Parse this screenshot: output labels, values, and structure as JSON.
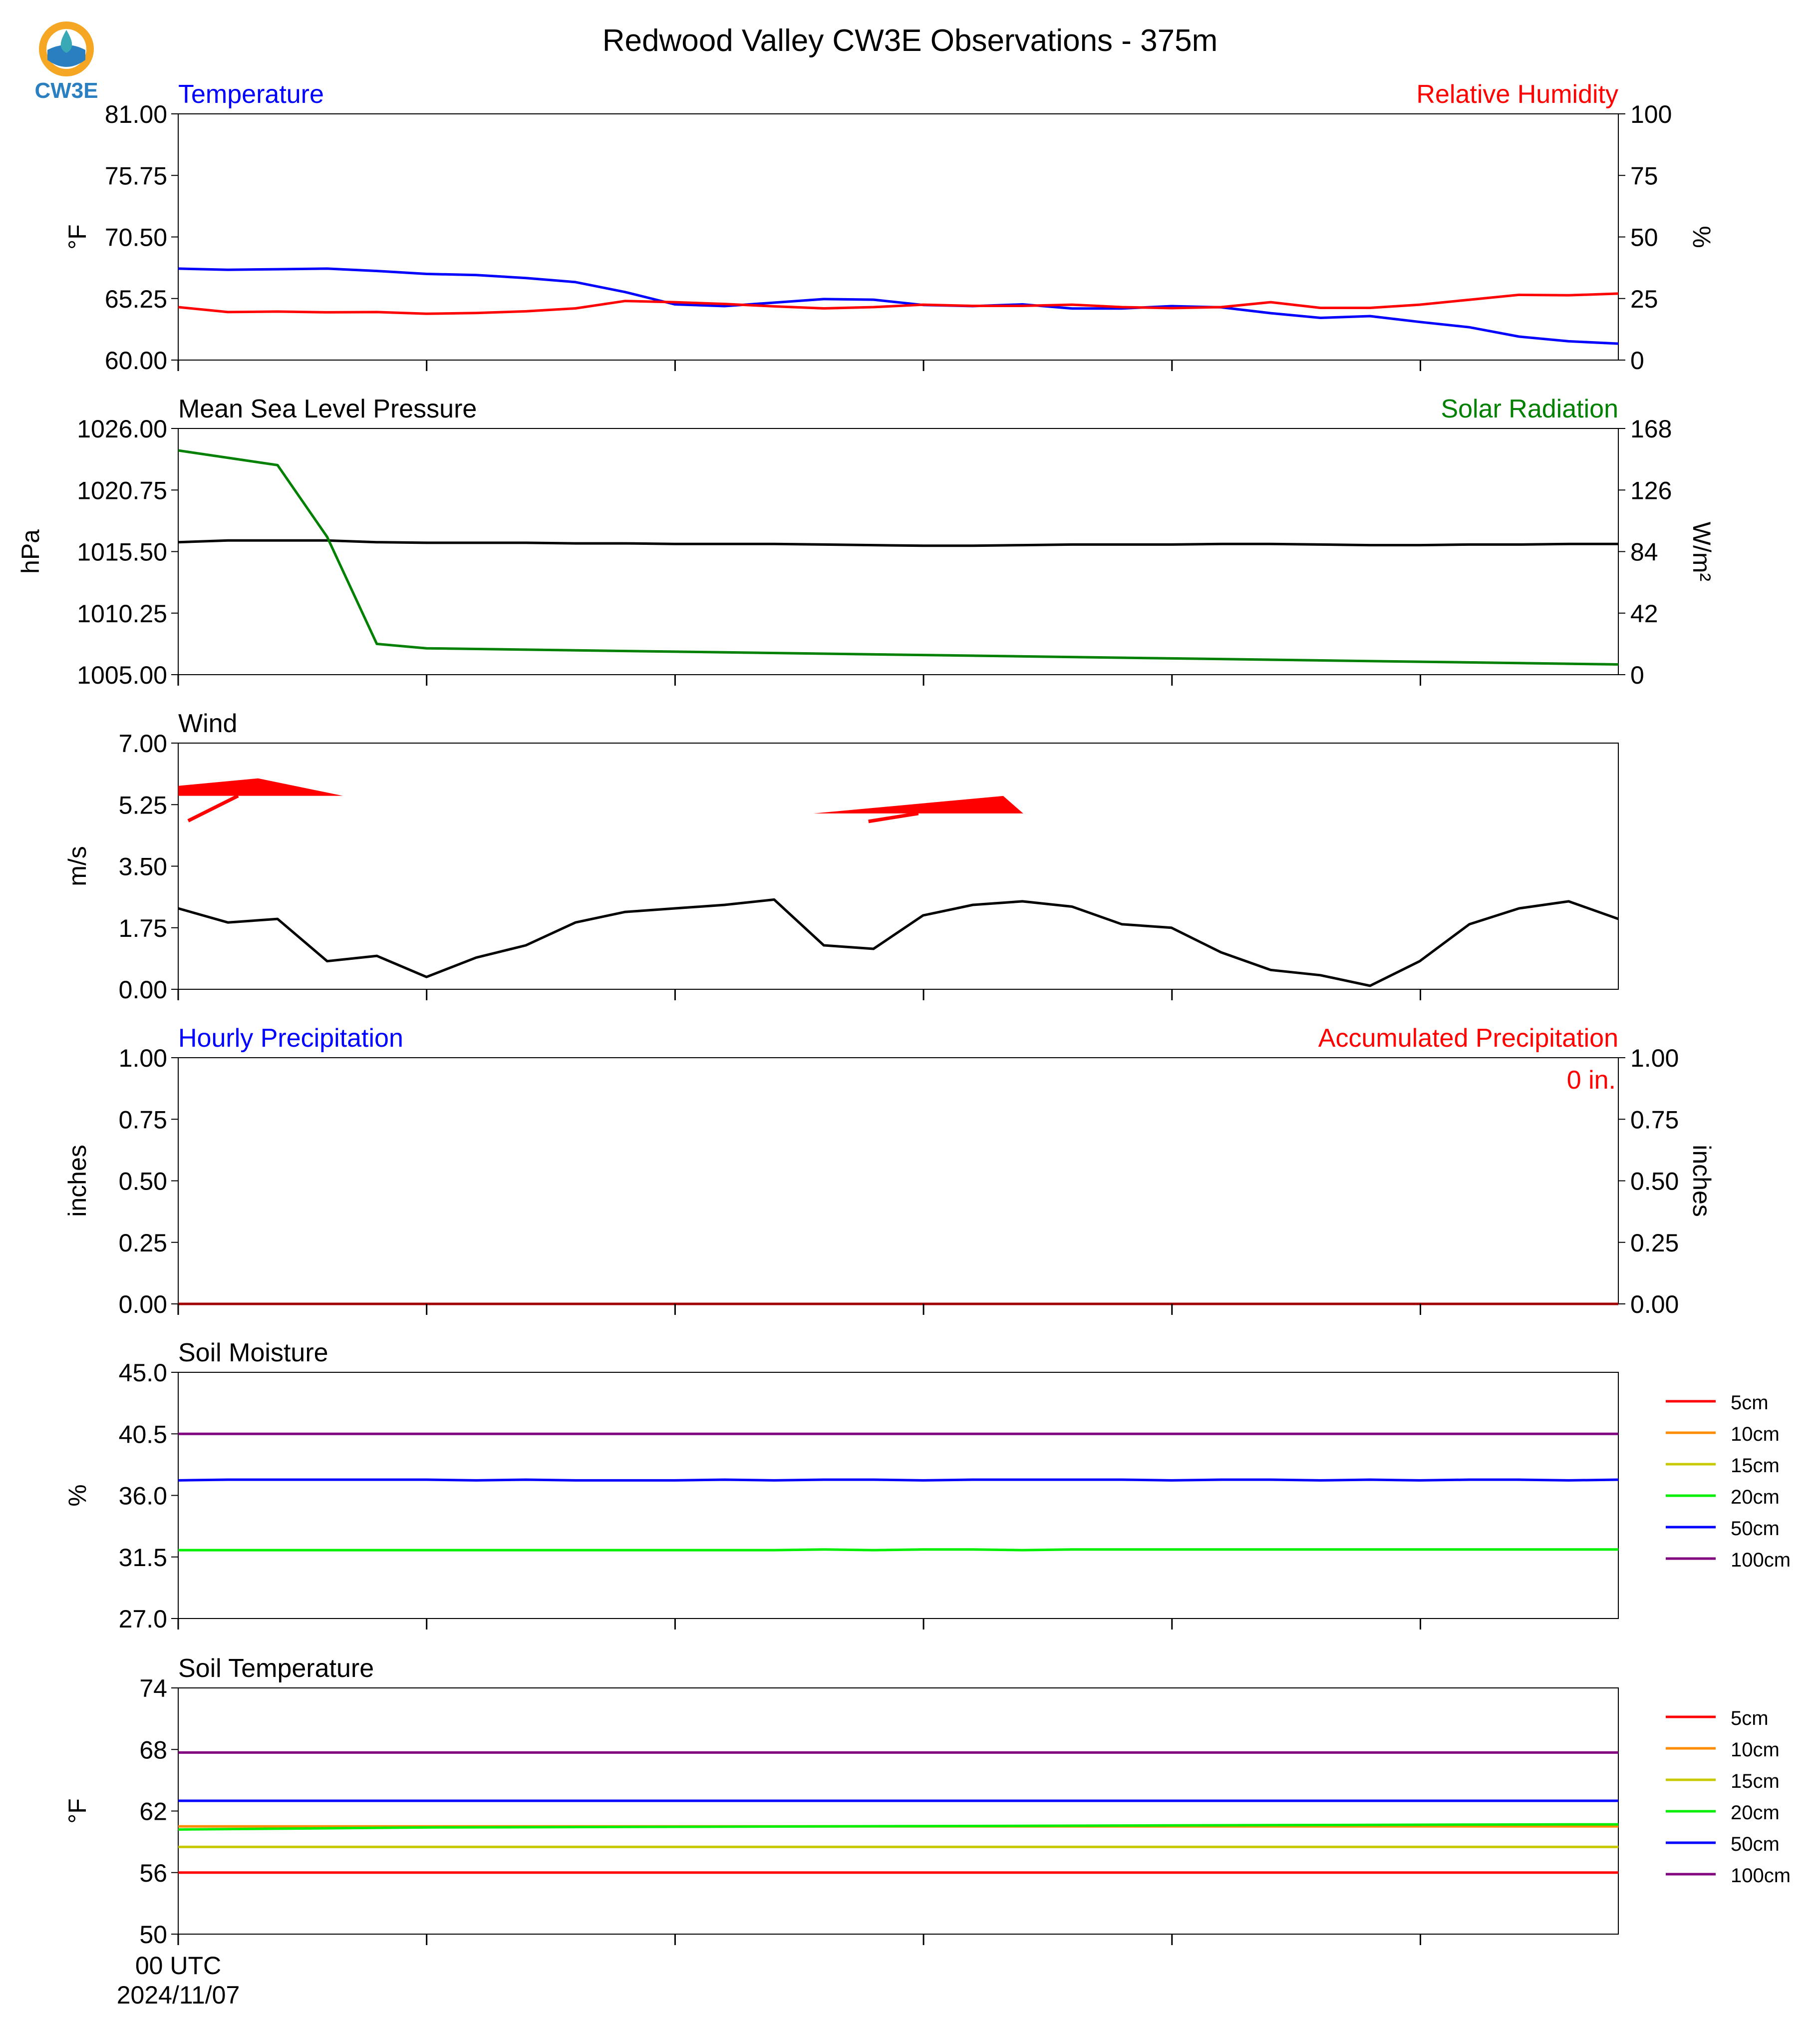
{
  "title": "Redwood Valley CW3E Observations - 375m",
  "logo": {
    "text": "CW3E",
    "colors": {
      "orange": "#f5a623",
      "blue": "#2a7fc0",
      "teal": "#3aa9b6"
    }
  },
  "x_axis": {
    "tick_count": 7,
    "first_label_line1": "00 UTC",
    "first_label_line2": "2024/11/07"
  },
  "chart_data": [
    {
      "id": "temp_rh",
      "type": "line",
      "title_left": "Temperature",
      "title_right": "Relative Humidity",
      "title_left_color": "#0000ff",
      "title_right_color": "#ff0000",
      "ylabel": "°F",
      "ylabel_right": "%",
      "ylim": [
        60.0,
        81.0
      ],
      "ylim_right": [
        0,
        100
      ],
      "yticks": [
        "60.00",
        "65.25",
        "70.50",
        "75.75",
        "81.00"
      ],
      "yticks_right": [
        "0",
        "25",
        "50",
        "75",
        "100"
      ],
      "series": [
        {
          "name": "Temperature",
          "axis": "left",
          "color": "#0000ff",
          "values": [
            67.8,
            67.7,
            67.75,
            67.8,
            67.6,
            67.35,
            67.25,
            67.0,
            66.65,
            65.8,
            64.75,
            64.6,
            64.9,
            65.2,
            65.15,
            64.7,
            64.6,
            64.75,
            64.4,
            64.4,
            64.6,
            64.5,
            64.0,
            63.6,
            63.75,
            63.25,
            62.8,
            62.0,
            61.6,
            61.4
          ]
        },
        {
          "name": "Relative Humidity",
          "axis": "right",
          "color": "#ff0000",
          "values": [
            21.5,
            19.5,
            19.7,
            19.4,
            19.5,
            18.8,
            19.1,
            19.8,
            21.0,
            24.0,
            23.5,
            22.8,
            21.8,
            21.0,
            21.5,
            22.5,
            22.0,
            22.0,
            22.5,
            21.5,
            21.1,
            21.5,
            23.5,
            21.2,
            21.2,
            22.5,
            24.5,
            26.5,
            26.3,
            27.0
          ]
        }
      ]
    },
    {
      "id": "pressure_solar",
      "type": "line",
      "title_left": "Mean Sea Level Pressure",
      "title_right": "Solar Radiation",
      "title_left_color": "#000000",
      "title_right_color": "#008000",
      "ylabel": "hPa",
      "ylabel_right": "W/m²",
      "ylim": [
        1005.0,
        1026.0
      ],
      "ylim_right": [
        0,
        168
      ],
      "yticks": [
        "1005.00",
        "1010.25",
        "1015.50",
        "1020.75",
        "1026.00"
      ],
      "yticks_right": [
        "0",
        "42",
        "84",
        "126",
        "168"
      ],
      "series": [
        {
          "name": "Mean Sea Level Pressure",
          "axis": "left",
          "color": "#000000",
          "values": [
            1016.3,
            1016.45,
            1016.45,
            1016.45,
            1016.3,
            1016.25,
            1016.25,
            1016.25,
            1016.2,
            1016.2,
            1016.15,
            1016.15,
            1016.15,
            1016.1,
            1016.05,
            1016.0,
            1016.0,
            1016.05,
            1016.1,
            1016.1,
            1016.1,
            1016.15,
            1016.15,
            1016.1,
            1016.05,
            1016.05,
            1016.1,
            1016.1,
            1016.15,
            1016.15
          ]
        },
        {
          "name": "Solar Radiation",
          "axis": "right",
          "color": "#008000",
          "x": [
            0,
            2,
            3,
            4,
            5,
            29
          ],
          "values": [
            153,
            143,
            94,
            21,
            18,
            7
          ]
        }
      ]
    },
    {
      "id": "wind",
      "type": "line",
      "title_left": "Wind",
      "title_left_color": "#000000",
      "ylabel": "m/s",
      "ylim": [
        0.0,
        7.0
      ],
      "yticks": [
        "0.00",
        "1.75",
        "3.50",
        "5.25",
        "7.00"
      ],
      "series": [
        {
          "name": "Wind Speed",
          "axis": "left",
          "color": "#000000",
          "values": [
            2.3,
            1.9,
            2.0,
            0.8,
            0.95,
            0.35,
            0.9,
            1.25,
            1.9,
            2.2,
            2.3,
            2.4,
            2.55,
            1.25,
            1.15,
            2.1,
            2.4,
            2.5,
            2.35,
            1.85,
            1.75,
            1.05,
            0.55,
            0.4,
            0.1,
            0.8,
            1.85,
            2.3,
            2.5,
            2.0
          ]
        }
      ],
      "barbs": {
        "color": "#ff0000",
        "items": [
          {
            "x": 0,
            "speed_ms": 5.5
          },
          {
            "x": 14,
            "speed_ms": 5.0
          }
        ]
      }
    },
    {
      "id": "precip",
      "type": "line",
      "title_left": "Hourly Precipitation",
      "title_right": "Accumulated Precipitation",
      "title_left_color": "#0000ff",
      "title_right_color": "#ff0000",
      "ylabel": "inches",
      "ylabel_right": "inches",
      "ylim": [
        0.0,
        1.0
      ],
      "ylim_right": [
        0.0,
        1.0
      ],
      "yticks": [
        "0.00",
        "0.25",
        "0.50",
        "0.75",
        "1.00"
      ],
      "yticks_right": [
        "0.00",
        "0.25",
        "0.50",
        "0.75",
        "1.00"
      ],
      "annotation": "0 in.",
      "annotation_color": "#ff0000",
      "series": [
        {
          "name": "Hourly Precipitation",
          "axis": "left",
          "color": "#0000ff",
          "x": [
            0,
            29
          ],
          "values": [
            0,
            0
          ]
        },
        {
          "name": "Accumulated Precipitation",
          "axis": "right",
          "color": "#a00000",
          "x": [
            0,
            29
          ],
          "values": [
            0,
            0
          ]
        }
      ]
    },
    {
      "id": "soil_moisture",
      "type": "line",
      "title_left": "Soil Moisture",
      "title_left_color": "#000000",
      "ylabel": "%",
      "ylim": [
        27.0,
        45.0
      ],
      "yticks": [
        "27.0",
        "31.5",
        "36.0",
        "40.5",
        "45.0"
      ],
      "legend": [
        "5cm",
        "10cm",
        "15cm",
        "20cm",
        "50cm",
        "100cm"
      ],
      "legend_colors": [
        "#ff0000",
        "#ff8c00",
        "#c8c800",
        "#00ee00",
        "#0000ff",
        "#800080"
      ],
      "series": [
        {
          "name": "20cm",
          "axis": "left",
          "color": "#00ee00",
          "x": [
            0,
            12,
            13,
            14,
            15,
            16,
            17,
            18,
            29
          ],
          "values": [
            32.0,
            32.0,
            32.05,
            32.0,
            32.05,
            32.05,
            32.0,
            32.05,
            32.05
          ]
        },
        {
          "name": "50cm",
          "axis": "left",
          "color": "#0000ff",
          "values": [
            37.1,
            37.15,
            37.15,
            37.15,
            37.15,
            37.15,
            37.1,
            37.15,
            37.1,
            37.1,
            37.1,
            37.15,
            37.1,
            37.15,
            37.15,
            37.1,
            37.15,
            37.15,
            37.15,
            37.15,
            37.1,
            37.15,
            37.15,
            37.1,
            37.15,
            37.1,
            37.15,
            37.15,
            37.1,
            37.15
          ]
        },
        {
          "name": "100cm",
          "axis": "left",
          "color": "#800080",
          "x": [
            0,
            29
          ],
          "values": [
            40.5,
            40.5
          ]
        }
      ]
    },
    {
      "id": "soil_temp",
      "type": "line",
      "title_left": "Soil Temperature",
      "title_left_color": "#000000",
      "ylabel": "°F",
      "ylim": [
        50,
        74
      ],
      "yticks": [
        "50",
        "56",
        "62",
        "68",
        "74"
      ],
      "legend": [
        "5cm",
        "10cm",
        "15cm",
        "20cm",
        "50cm",
        "100cm"
      ],
      "legend_colors": [
        "#ff0000",
        "#ff8c00",
        "#c8c800",
        "#00ee00",
        "#0000ff",
        "#800080"
      ],
      "series": [
        {
          "name": "5cm",
          "axis": "left",
          "color": "#ff0000",
          "x": [
            0,
            29
          ],
          "values": [
            56.0,
            56.0
          ]
        },
        {
          "name": "10cm",
          "axis": "left",
          "color": "#ff8c00",
          "x": [
            0,
            29
          ],
          "values": [
            60.5,
            60.5
          ]
        },
        {
          "name": "15cm",
          "axis": "left",
          "color": "#c8c800",
          "x": [
            0,
            29
          ],
          "values": [
            58.5,
            58.5
          ]
        },
        {
          "name": "20cm",
          "axis": "left",
          "color": "#00ee00",
          "x": [
            0,
            5,
            13,
            20,
            28,
            29
          ],
          "values": [
            60.2,
            60.4,
            60.5,
            60.6,
            60.7,
            60.7
          ]
        },
        {
          "name": "50cm",
          "axis": "left",
          "color": "#0000ff",
          "x": [
            0,
            29
          ],
          "values": [
            63.0,
            63.0
          ]
        },
        {
          "name": "100cm",
          "axis": "left",
          "color": "#800080",
          "x": [
            0,
            29
          ],
          "values": [
            67.7,
            67.7
          ]
        }
      ]
    }
  ]
}
